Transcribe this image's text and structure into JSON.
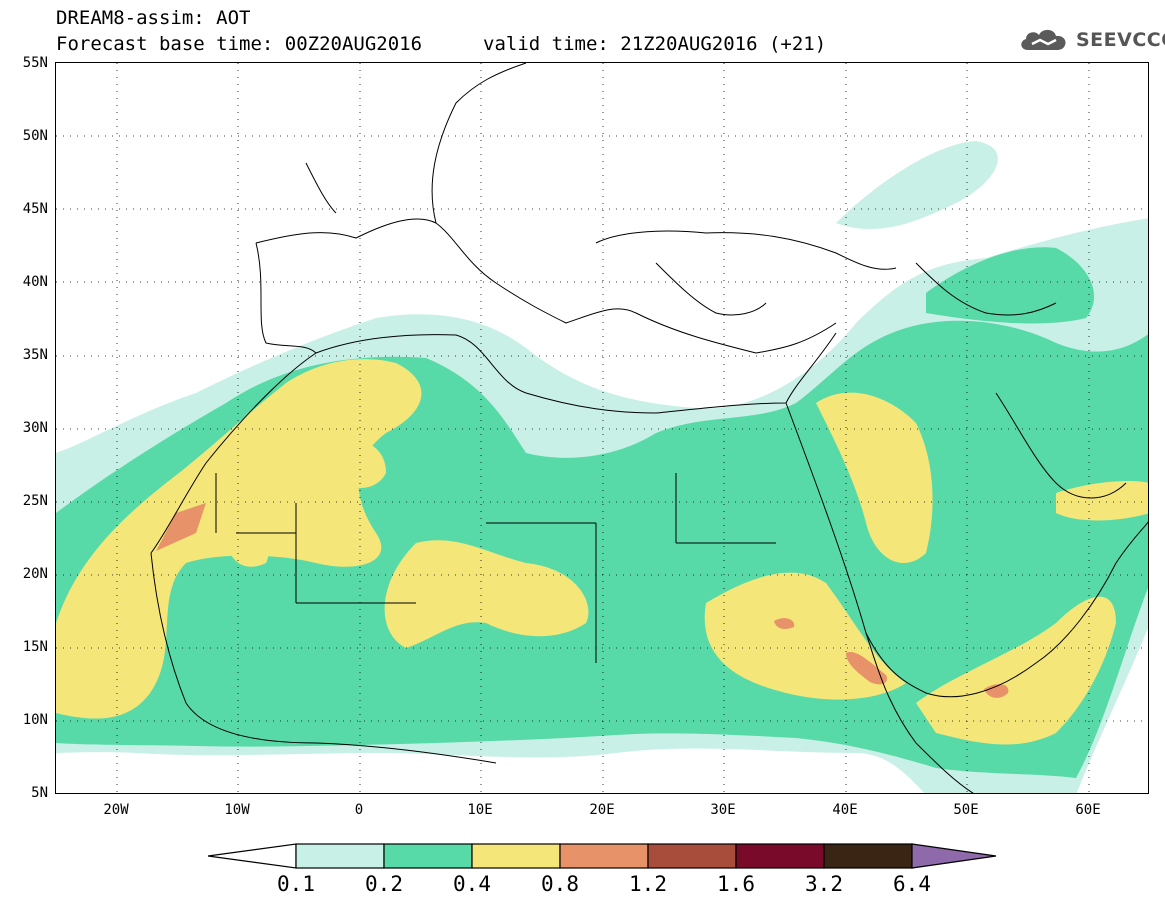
{
  "title": {
    "line1": "DREAM8-assim: AOT",
    "line2": "Forecast base time: 00Z20AUG2016",
    "line3": "valid time: 21Z20AUG2016 (+21)"
  },
  "logo": {
    "text": "SEEVCCC",
    "icon": "cloud-logo-icon"
  },
  "axes": {
    "lat_labels": [
      "55N",
      "50N",
      "45N",
      "40N",
      "35N",
      "30N",
      "25N",
      "20N",
      "15N",
      "10N",
      "5N"
    ],
    "lon_labels": [
      "20W",
      "10W",
      "0",
      "10E",
      "20E",
      "30E",
      "40E",
      "50E",
      "60E"
    ],
    "lat_range": [
      5,
      55
    ],
    "lon_range": [
      -25,
      65
    ]
  },
  "colorbar": {
    "labels": [
      "0.1",
      "0.2",
      "0.4",
      "0.8",
      "1.2",
      "1.6",
      "3.2",
      "6.4"
    ],
    "colors": [
      "#ffffff",
      "#c8f0e6",
      "#57d9a8",
      "#f5e67a",
      "#e8926a",
      "#a84c3c",
      "#7a0a2a",
      "#3a2414",
      "#8e6aaa"
    ]
  }
}
